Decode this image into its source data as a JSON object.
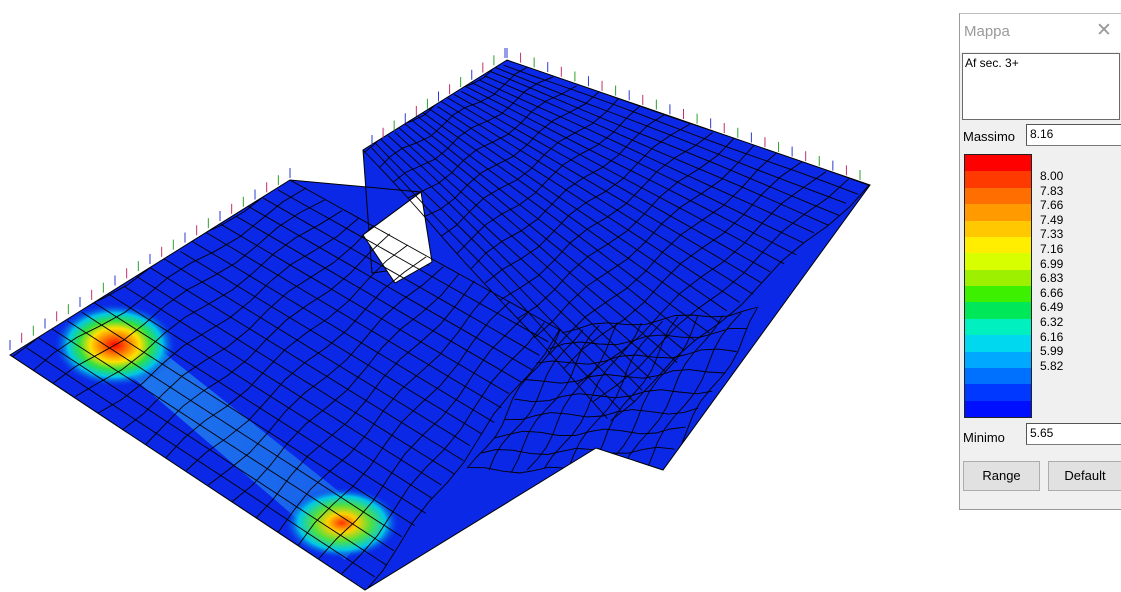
{
  "legend_panel": {
    "title": "Mappa",
    "description": "Af sec. 3+",
    "max_label": "Massimo",
    "max_value": "8.16",
    "min_label": "Minimo",
    "min_value": "5.65",
    "range_button": "Range",
    "default_button": "Default",
    "scale_values": [
      "8.00",
      "7.83",
      "7.66",
      "7.49",
      "7.33",
      "7.16",
      "6.99",
      "6.83",
      "6.66",
      "6.49",
      "6.32",
      "6.16",
      "5.99",
      "5.82"
    ],
    "scale_colors": [
      "#ff0000",
      "#ff3a00",
      "#ff6e00",
      "#ff9a00",
      "#ffc800",
      "#ffee00",
      "#d8ff00",
      "#9cf000",
      "#3cf000",
      "#00e85a",
      "#00f0c0",
      "#00d8f0",
      "#00a8ff",
      "#0070ff",
      "#0038ff",
      "#0010ff"
    ]
  },
  "mesh": {
    "base_color": "#0a28e6",
    "line_color": "#000000",
    "hotspots": [
      {
        "name": "support-hotspot-left",
        "peak_color": "#ff0000"
      },
      {
        "name": "support-hotspot-bottom",
        "peak_color": "#ffd000"
      }
    ]
  }
}
